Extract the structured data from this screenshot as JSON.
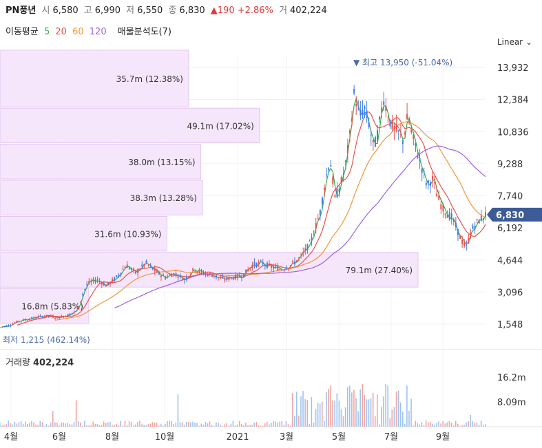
{
  "header": {
    "name": "PN풍년",
    "open_label": "시",
    "open": "6,580",
    "high_label": "고",
    "high": "6,990",
    "low_label": "저",
    "low": "6,550",
    "close_label": "종",
    "close": "6,830",
    "change": "▲190 +2.86%",
    "volume_label": "거",
    "volume": "402,224"
  },
  "ma_legend": {
    "title": "이동평균",
    "periods": [
      "5",
      "20",
      "60",
      "120"
    ],
    "colors": [
      "#3aa84e",
      "#e8504a",
      "#f0963a",
      "#9a62e0"
    ],
    "profile_label": "매물분석도(7)"
  },
  "scale_label": "Linear",
  "price_axis": [
    "13,932",
    "12,384",
    "10,836",
    "9,288",
    "7,740",
    "6,192",
    "4,644",
    "3,096",
    "1,548"
  ],
  "volume_axis": [
    "16.2m",
    "8.09m"
  ],
  "time_axis": [
    "4월",
    "6월",
    "8월",
    "10월",
    "2021",
    "3월",
    "5월",
    "7월",
    "9월"
  ],
  "current_price": "6,830",
  "high_marker": "최고 13,950 (-51.04%)",
  "low_marker": "최저 1,215 (462.14%)",
  "volume_title": "거래량",
  "volume_value": "402,224",
  "chart_data": {
    "type": "candlestick",
    "price_range": [
      1215,
      13950
    ],
    "volume_profile": [
      {
        "label": "35.7m (12.38%)",
        "volume_m": 35.7,
        "pct": 12.38,
        "price_range": [
          12000,
          14800
        ]
      },
      {
        "label": "49.1m (17.02%)",
        "volume_m": 49.1,
        "pct": 17.02,
        "price_range": [
          10260,
          12000
        ]
      },
      {
        "label": "38.0m (13.15%)",
        "volume_m": 38.0,
        "pct": 13.15,
        "price_range": [
          8520,
          10260
        ]
      },
      {
        "label": "38.3m (13.28%)",
        "volume_m": 38.3,
        "pct": 13.28,
        "price_range": [
          6780,
          8520
        ]
      },
      {
        "label": "31.6m (10.93%)",
        "volume_m": 31.6,
        "pct": 10.93,
        "price_range": [
          5040,
          6780
        ]
      },
      {
        "label": "79.1m (27.40%)",
        "volume_m": 79.1,
        "pct": 27.4,
        "price_range": [
          3300,
          5040
        ]
      },
      {
        "label": "16.8m (5.83%)",
        "volume_m": 16.8,
        "pct": 5.83,
        "price_range": [
          1560,
          3300
        ]
      }
    ],
    "price_path": [
      [
        0,
        1400
      ],
      [
        0.02,
        1500
      ],
      [
        0.04,
        1700
      ],
      [
        0.06,
        1800
      ],
      [
        0.08,
        1900
      ],
      [
        0.1,
        1950
      ],
      [
        0.12,
        1850
      ],
      [
        0.14,
        2000
      ],
      [
        0.16,
        2200
      ],
      [
        0.17,
        3000
      ],
      [
        0.18,
        3500
      ],
      [
        0.2,
        3700
      ],
      [
        0.22,
        3400
      ],
      [
        0.24,
        3800
      ],
      [
        0.26,
        4400
      ],
      [
        0.28,
        4000
      ],
      [
        0.3,
        4500
      ],
      [
        0.32,
        4100
      ],
      [
        0.34,
        3800
      ],
      [
        0.36,
        4000
      ],
      [
        0.38,
        3700
      ],
      [
        0.4,
        4200
      ],
      [
        0.42,
        4000
      ],
      [
        0.44,
        3900
      ],
      [
        0.46,
        3700
      ],
      [
        0.48,
        3800
      ],
      [
        0.5,
        3900
      ],
      [
        0.52,
        4400
      ],
      [
        0.54,
        4500
      ],
      [
        0.56,
        4300
      ],
      [
        0.58,
        4200
      ],
      [
        0.6,
        4400
      ],
      [
        0.62,
        4800
      ],
      [
        0.64,
        5500
      ],
      [
        0.66,
        7000
      ],
      [
        0.67,
        8500
      ],
      [
        0.68,
        9500
      ],
      [
        0.69,
        7600
      ],
      [
        0.7,
        8200
      ],
      [
        0.71,
        9000
      ],
      [
        0.72,
        10500
      ],
      [
        0.73,
        12800
      ],
      [
        0.74,
        11500
      ],
      [
        0.75,
        12000
      ],
      [
        0.76,
        11200
      ],
      [
        0.77,
        10000
      ],
      [
        0.78,
        11000
      ],
      [
        0.79,
        12500
      ],
      [
        0.8,
        11500
      ],
      [
        0.81,
        11000
      ],
      [
        0.82,
        10800
      ],
      [
        0.83,
        10400
      ],
      [
        0.84,
        11600
      ],
      [
        0.85,
        10500
      ],
      [
        0.86,
        9800
      ],
      [
        0.87,
        9000
      ],
      [
        0.88,
        8200
      ],
      [
        0.89,
        8600
      ],
      [
        0.9,
        7800
      ],
      [
        0.91,
        7200
      ],
      [
        0.92,
        6900
      ],
      [
        0.93,
        6700
      ],
      [
        0.94,
        6200
      ],
      [
        0.95,
        5600
      ],
      [
        0.96,
        5200
      ],
      [
        0.97,
        6000
      ],
      [
        0.98,
        6400
      ],
      [
        1.0,
        6830
      ]
    ]
  }
}
